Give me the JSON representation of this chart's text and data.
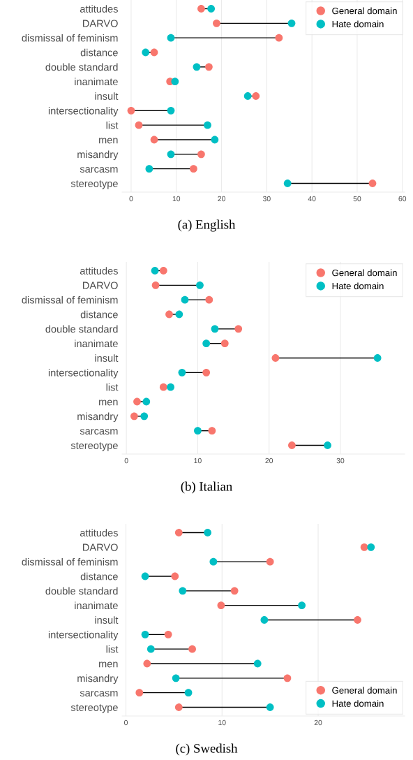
{
  "chart_data": [
    {
      "type": "scatter",
      "orientation": "horizontal",
      "categories": [
        "attitudes",
        "DARVO",
        "dismissal of feminism",
        "distance",
        "double standard",
        "inanimate",
        "insult",
        "intersectionality",
        "list",
        "men",
        "misandry",
        "sarcasm",
        "stereotype"
      ],
      "series": [
        {
          "name": "General domain",
          "color": "#f8766d",
          "values": [
            15.5,
            18.9,
            32.7,
            5.1,
            17.2,
            8.6,
            27.6,
            0,
            1.7,
            5.1,
            15.5,
            13.8,
            53.4
          ]
        },
        {
          "name": "Hate domain",
          "color": "#00bfc4",
          "values": [
            17.7,
            35.5,
            8.8,
            3.2,
            14.5,
            9.7,
            25.8,
            8.8,
            16.9,
            18.5,
            8.8,
            4.0,
            34.6
          ]
        }
      ],
      "xlim": [
        -2,
        60.5
      ],
      "xticks": [
        0,
        10,
        20,
        30,
        40,
        50,
        60
      ],
      "grid": "x",
      "legend": "top right",
      "marker": "circle",
      "annotations": [
        "(a) English"
      ]
    },
    {
      "type": "scatter",
      "orientation": "horizontal",
      "categories": [
        "attitudes",
        "DARVO",
        "dismissal of feminism",
        "distance",
        "double standard",
        "inanimate",
        "insult",
        "intersectionality",
        "list",
        "men",
        "misandry",
        "sarcasm",
        "stereotype"
      ],
      "series": [
        {
          "name": "General domain",
          "color": "#f8766d",
          "values": [
            5.2,
            4.1,
            11.6,
            6.0,
            15.7,
            13.8,
            20.9,
            11.2,
            5.2,
            1.5,
            1.1,
            12.0,
            23.2
          ]
        },
        {
          "name": "Hate domain",
          "color": "#00bfc4",
          "values": [
            4.0,
            10.3,
            8.2,
            7.4,
            12.4,
            11.2,
            35.2,
            7.8,
            6.2,
            2.8,
            2.5,
            10.0,
            28.2
          ]
        }
      ],
      "xlim": [
        -0.6,
        39
      ],
      "xticks": [
        0,
        10,
        20,
        30
      ],
      "grid": "x",
      "legend": "top right",
      "marker": "circle",
      "annotations": [
        "(b) Italian"
      ]
    },
    {
      "type": "scatter",
      "orientation": "horizontal",
      "categories": [
        "attitudes",
        "DARVO",
        "dismissal of feminism",
        "distance",
        "double standard",
        "inanimate",
        "insult",
        "intersectionality",
        "list",
        "men",
        "misandry",
        "sarcasm",
        "stereotype"
      ],
      "series": [
        {
          "name": "General domain",
          "color": "#f8766d",
          "values": [
            5.5,
            24.8,
            15.0,
            5.1,
            11.3,
            9.9,
            24.1,
            4.4,
            6.9,
            2.2,
            16.8,
            1.4,
            5.5
          ]
        },
        {
          "name": "Hate domain",
          "color": "#00bfc4",
          "values": [
            8.5,
            25.5,
            9.1,
            2.0,
            5.9,
            18.3,
            14.4,
            2.0,
            2.6,
            13.7,
            5.2,
            6.5,
            15.0
          ]
        }
      ],
      "xlim": [
        -0.4,
        29
      ],
      "xticks": [
        0,
        10,
        20
      ],
      "grid": "x",
      "legend": "bottom right",
      "marker": "circle",
      "annotations": [
        "(c) Swedish"
      ]
    }
  ]
}
